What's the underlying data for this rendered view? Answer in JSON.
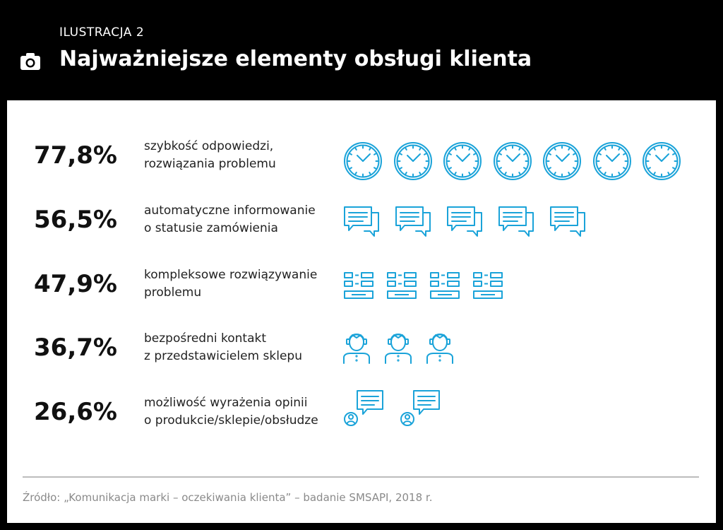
{
  "header": {
    "kicker": "ILUSTRACJA 2",
    "title": "Najważniejsze elementy obsługi klienta",
    "camera_icon": "camera-icon"
  },
  "colors": {
    "background": "#000000",
    "panel": "#ffffff",
    "icon_accent": "#1aa3d9",
    "text": "#111111",
    "source_text": "#8a8a8a"
  },
  "chart_data": {
    "type": "pictograph",
    "rows": [
      {
        "value": "77,8%",
        "numeric": 77.8,
        "label_lines": [
          "szybkość odpowiedzi,",
          "rozwiązania problemu"
        ],
        "icon": "clock-icon",
        "icon_count": 7
      },
      {
        "value": "56,5%",
        "numeric": 56.5,
        "label_lines": [
          "automatyczne informowanie",
          "o statusie zamówienia"
        ],
        "icon": "chat-bubbles-icon",
        "icon_count": 5
      },
      {
        "value": "47,9%",
        "numeric": 47.9,
        "label_lines": [
          "kompleksowe rozwiązywanie",
          "problemu"
        ],
        "icon": "form-icon",
        "icon_count": 4
      },
      {
        "value": "36,7%",
        "numeric": 36.7,
        "label_lines": [
          "bezpośredni kontakt",
          "z przedstawicielem sklepu"
        ],
        "icon": "agent-icon",
        "icon_count": 3
      },
      {
        "value": "26,6%",
        "numeric": 26.6,
        "label_lines": [
          "możliwość wyrażenia opinii",
          "o produkcie/sklepie/obsłudze"
        ],
        "icon": "user-comment-icon",
        "icon_count": 2
      }
    ]
  },
  "footer": {
    "source": "Źródło: „Komunikacja marki – oczekiwania klienta” – badanie SMSAPI, 2018 r."
  }
}
